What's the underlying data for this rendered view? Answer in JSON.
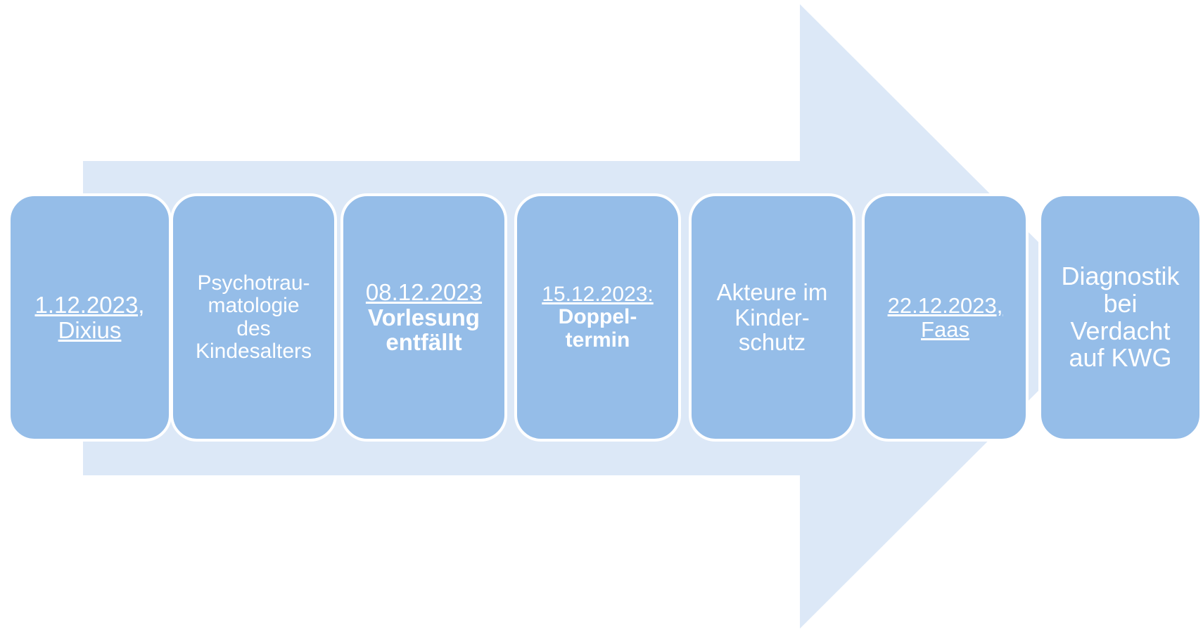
{
  "nodes": [
    {
      "lines": [
        "1.12.2023,",
        "Dixius"
      ]
    },
    {
      "lines": [
        "Psychotrau-",
        "matologie",
        "des",
        "Kindesalters"
      ]
    },
    {
      "lines": [
        "08.12.2023",
        "Vorlesung",
        "entfällt"
      ]
    },
    {
      "lines": [
        "15.12.2023:",
        "Doppel-",
        "termin"
      ]
    },
    {
      "lines": [
        "Akteure im",
        "Kinder-",
        "schutz"
      ]
    },
    {
      "lines": [
        "22.12.2023,",
        "Faas"
      ]
    },
    {
      "lines": [
        "Diagnostik",
        "bei",
        "Verdacht",
        "auf KWG"
      ]
    }
  ]
}
